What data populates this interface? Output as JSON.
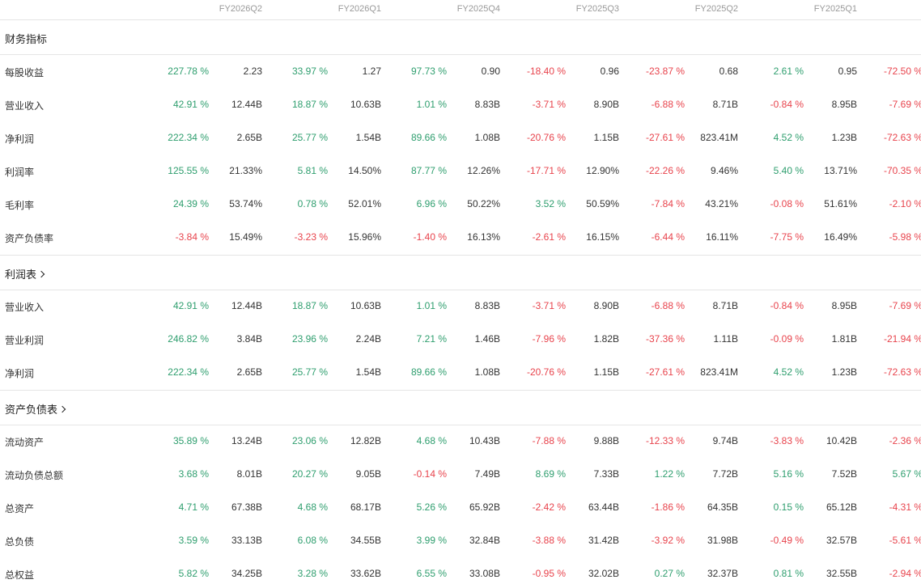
{
  "periods": [
    "FY2026Q2",
    "FY2026Q1",
    "FY2025Q4",
    "FY2025Q3",
    "FY2025Q2",
    "FY2025Q1"
  ],
  "colors": {
    "positive": "#2e9e6e",
    "negative": "#e8434c",
    "value": "#333333"
  },
  "sections": [
    {
      "title": "财务指标",
      "link": false,
      "rows": [
        {
          "label": "每股收益",
          "cells": [
            "227.78 %",
            "2.23",
            "33.97 %",
            "1.27",
            "97.73 %",
            "0.90",
            "-18.40 %",
            "0.96",
            "-23.87 %",
            "0.68",
            "2.61 %",
            "0.95",
            "-72.50 %"
          ]
        },
        {
          "label": "营业收入",
          "cells": [
            "42.91 %",
            "12.44B",
            "18.87 %",
            "10.63B",
            "1.01 %",
            "8.83B",
            "-3.71 %",
            "8.90B",
            "-6.88 %",
            "8.71B",
            "-0.84 %",
            "8.95B",
            "-7.69 %"
          ]
        },
        {
          "label": "净利润",
          "cells": [
            "222.34 %",
            "2.65B",
            "25.77 %",
            "1.54B",
            "89.66 %",
            "1.08B",
            "-20.76 %",
            "1.15B",
            "-27.61 %",
            "823.41M",
            "4.52 %",
            "1.23B",
            "-72.63 %"
          ]
        },
        {
          "label": "利润率",
          "cells": [
            "125.55 %",
            "21.33%",
            "5.81 %",
            "14.50%",
            "87.77 %",
            "12.26%",
            "-17.71 %",
            "12.90%",
            "-22.26 %",
            "9.46%",
            "5.40 %",
            "13.71%",
            "-70.35 %"
          ]
        },
        {
          "label": "毛利率",
          "cells": [
            "24.39 %",
            "53.74%",
            "0.78 %",
            "52.01%",
            "6.96 %",
            "50.22%",
            "3.52 %",
            "50.59%",
            "-7.84 %",
            "43.21%",
            "-0.08 %",
            "51.61%",
            "-2.10 %"
          ]
        },
        {
          "label": "资产负债率",
          "cells": [
            "-3.84 %",
            "15.49%",
            "-3.23 %",
            "15.96%",
            "-1.40 %",
            "16.13%",
            "-2.61 %",
            "16.15%",
            "-6.44 %",
            "16.11%",
            "-7.75 %",
            "16.49%",
            "-5.98 %"
          ]
        }
      ]
    },
    {
      "title": "利润表",
      "link": true,
      "rows": [
        {
          "label": "营业收入",
          "cells": [
            "42.91 %",
            "12.44B",
            "18.87 %",
            "10.63B",
            "1.01 %",
            "8.83B",
            "-3.71 %",
            "8.90B",
            "-6.88 %",
            "8.71B",
            "-0.84 %",
            "8.95B",
            "-7.69 %"
          ]
        },
        {
          "label": "营业利润",
          "cells": [
            "246.82 %",
            "3.84B",
            "23.96 %",
            "2.24B",
            "7.21 %",
            "1.46B",
            "-7.96 %",
            "1.82B",
            "-37.36 %",
            "1.11B",
            "-0.09 %",
            "1.81B",
            "-21.94 %"
          ]
        },
        {
          "label": "净利润",
          "cells": [
            "222.34 %",
            "2.65B",
            "25.77 %",
            "1.54B",
            "89.66 %",
            "1.08B",
            "-20.76 %",
            "1.15B",
            "-27.61 %",
            "823.41M",
            "4.52 %",
            "1.23B",
            "-72.63 %"
          ]
        }
      ]
    },
    {
      "title": "资产负债表",
      "link": true,
      "rows": [
        {
          "label": "流动资产",
          "cells": [
            "35.89 %",
            "13.24B",
            "23.06 %",
            "12.82B",
            "4.68 %",
            "10.43B",
            "-7.88 %",
            "9.88B",
            "-12.33 %",
            "9.74B",
            "-3.83 %",
            "10.42B",
            "-2.36 %"
          ]
        },
        {
          "label": "流动负债总额",
          "cells": [
            "3.68 %",
            "8.01B",
            "20.27 %",
            "9.05B",
            "-0.14 %",
            "7.49B",
            "8.69 %",
            "7.33B",
            "1.22 %",
            "7.72B",
            "5.16 %",
            "7.52B",
            "5.67 %"
          ]
        },
        {
          "label": "总资产",
          "cells": [
            "4.71 %",
            "67.38B",
            "4.68 %",
            "68.17B",
            "5.26 %",
            "65.92B",
            "-2.42 %",
            "63.44B",
            "-1.86 %",
            "64.35B",
            "0.15 %",
            "65.12B",
            "-4.31 %"
          ]
        },
        {
          "label": "总负债",
          "cells": [
            "3.59 %",
            "33.13B",
            "6.08 %",
            "34.55B",
            "3.99 %",
            "32.84B",
            "-3.88 %",
            "31.42B",
            "-3.92 %",
            "31.98B",
            "-0.49 %",
            "32.57B",
            "-5.61 %"
          ]
        },
        {
          "label": "总权益",
          "cells": [
            "5.82 %",
            "34.25B",
            "3.28 %",
            "33.62B",
            "6.55 %",
            "33.08B",
            "-0.95 %",
            "32.02B",
            "0.27 %",
            "32.37B",
            "0.81 %",
            "32.55B",
            "-2.94 %"
          ]
        }
      ]
    }
  ]
}
